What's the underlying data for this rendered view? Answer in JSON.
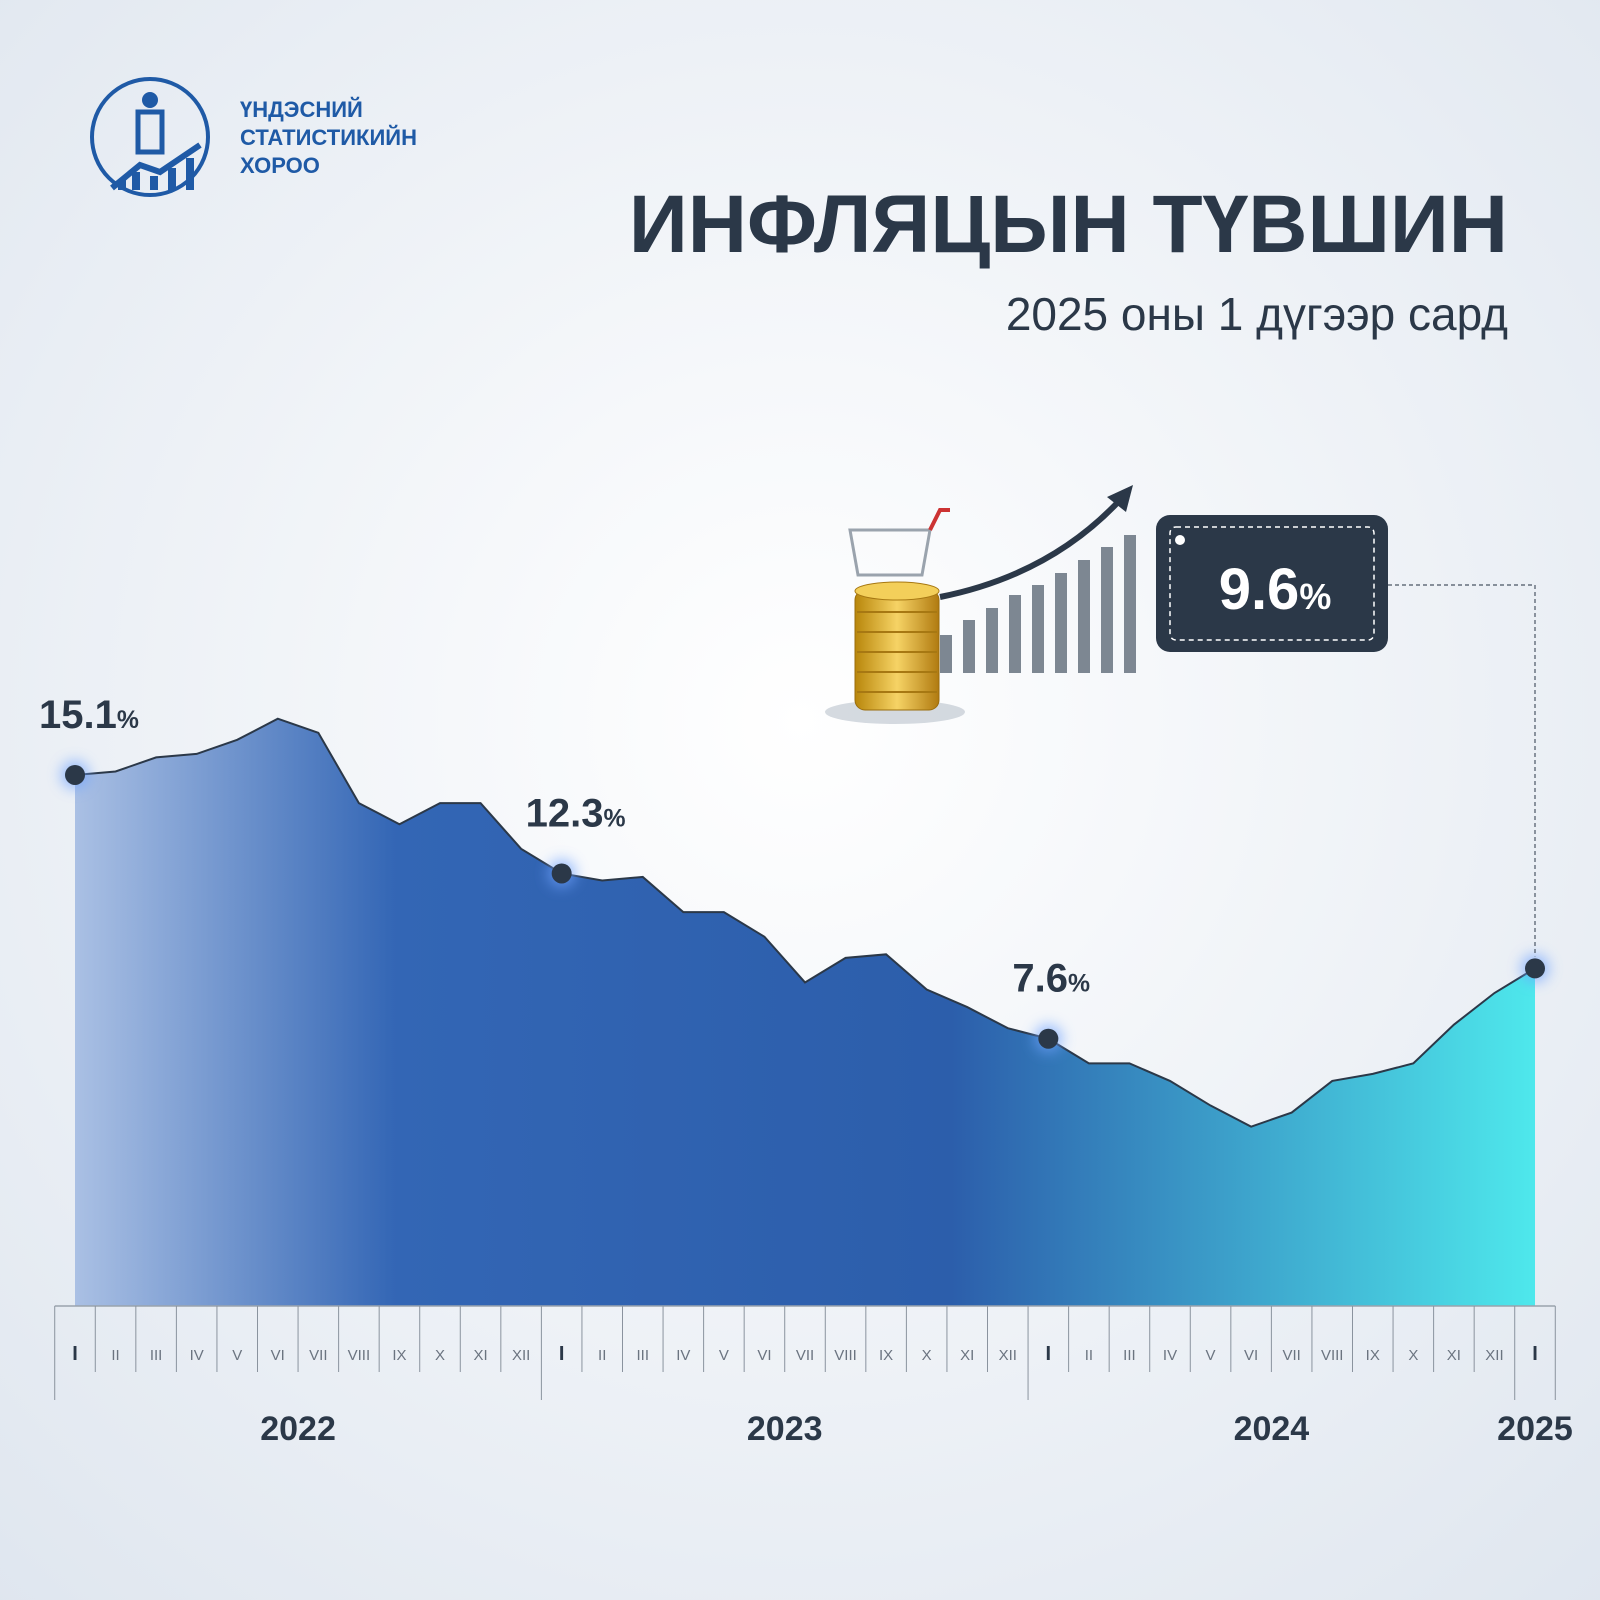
{
  "header": {
    "org": [
      "ҮНДЭСНИЙ",
      "СТАТИСТИКИЙН",
      "ХОРОО"
    ],
    "title": "ИНФЛЯЦЫН ТҮВШИН",
    "subtitle": "2025 оны 1 дүгээр сард"
  },
  "chart_data": {
    "type": "area",
    "categories": [
      "I",
      "II",
      "III",
      "IV",
      "V",
      "VI",
      "VII",
      "VIII",
      "IX",
      "X",
      "XI",
      "XII",
      "I",
      "II",
      "III",
      "IV",
      "V",
      "VI",
      "VII",
      "VIII",
      "IX",
      "X",
      "XI",
      "XII",
      "I",
      "II",
      "III",
      "IV",
      "V",
      "VI",
      "VII",
      "VIII",
      "IX",
      "X",
      "XI",
      "XII",
      "I"
    ],
    "year_labels": [
      "2022",
      "2023",
      "2024",
      "2025"
    ],
    "values": [
      15.1,
      15.2,
      15.6,
      15.7,
      16.1,
      16.7,
      16.3,
      14.3,
      13.7,
      14.3,
      14.3,
      13.0,
      12.3,
      12.1,
      12.2,
      11.2,
      11.2,
      10.5,
      9.2,
      9.9,
      10.0,
      9.0,
      8.5,
      7.9,
      7.6,
      6.9,
      6.9,
      6.4,
      5.7,
      5.1,
      5.5,
      6.4,
      6.6,
      6.9,
      8.0,
      8.9,
      9.6
    ],
    "value_labels": [
      "15.1%",
      null,
      null,
      null,
      null,
      null,
      null,
      null,
      null,
      null,
      null,
      null,
      "12.3%",
      null,
      null,
      null,
      null,
      null,
      null,
      null,
      null,
      null,
      null,
      null,
      "7.6%",
      null,
      null,
      null,
      null,
      null,
      null,
      null,
      null,
      null,
      null,
      null,
      "9.6%"
    ],
    "ylim": [
      0,
      18
    ],
    "colors": [
      "#aac0e4",
      "#3366b5",
      "#2c5eab",
      "#4ee8ec"
    ],
    "line_color": "#2b3848"
  }
}
